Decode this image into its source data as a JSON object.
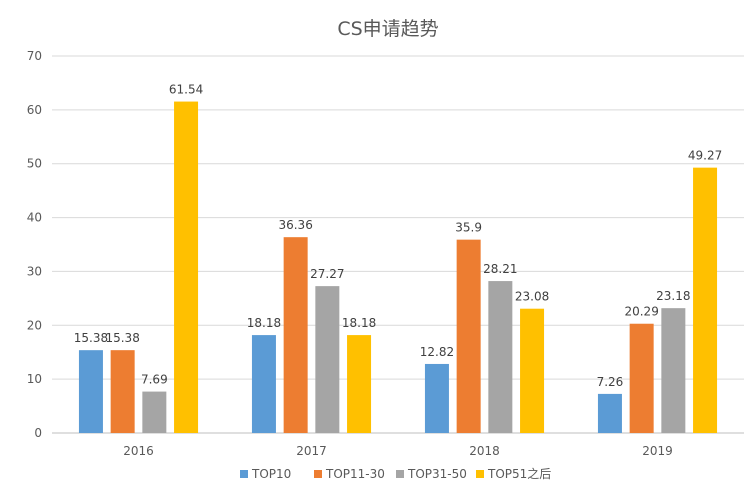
{
  "chart_data": {
    "type": "bar",
    "title": "CS申请趋势",
    "categories": [
      "2016",
      "2017",
      "2018",
      "2019"
    ],
    "series": [
      {
        "name": "TOP10",
        "color": "#5b9bd5",
        "values": [
          15.38,
          18.18,
          12.82,
          7.26
        ],
        "labels": [
          "15.38",
          "18.18",
          "12.82",
          "7.26"
        ]
      },
      {
        "name": "TOP11-30",
        "color": "#ed7d31",
        "values": [
          15.38,
          36.36,
          35.9,
          20.29
        ],
        "labels": [
          "15.38",
          "36.36",
          "35.9",
          "20.29"
        ]
      },
      {
        "name": "TOP31-50",
        "color": "#a5a5a5",
        "values": [
          7.69,
          27.27,
          28.21,
          23.18
        ],
        "labels": [
          "7.69",
          "27.27",
          "28.21",
          "23.18"
        ]
      },
      {
        "name": "TOP51之后",
        "color": "#ffc000",
        "values": [
          61.54,
          18.18,
          23.08,
          49.27
        ],
        "labels": [
          "61.54",
          "18.18",
          "23.08",
          "49.27"
        ]
      }
    ],
    "ylim": [
      0,
      70
    ],
    "yticks": [
      "0",
      "10",
      "20",
      "30",
      "40",
      "50",
      "60",
      "70"
    ],
    "grid": true,
    "legend": "bottom"
  }
}
